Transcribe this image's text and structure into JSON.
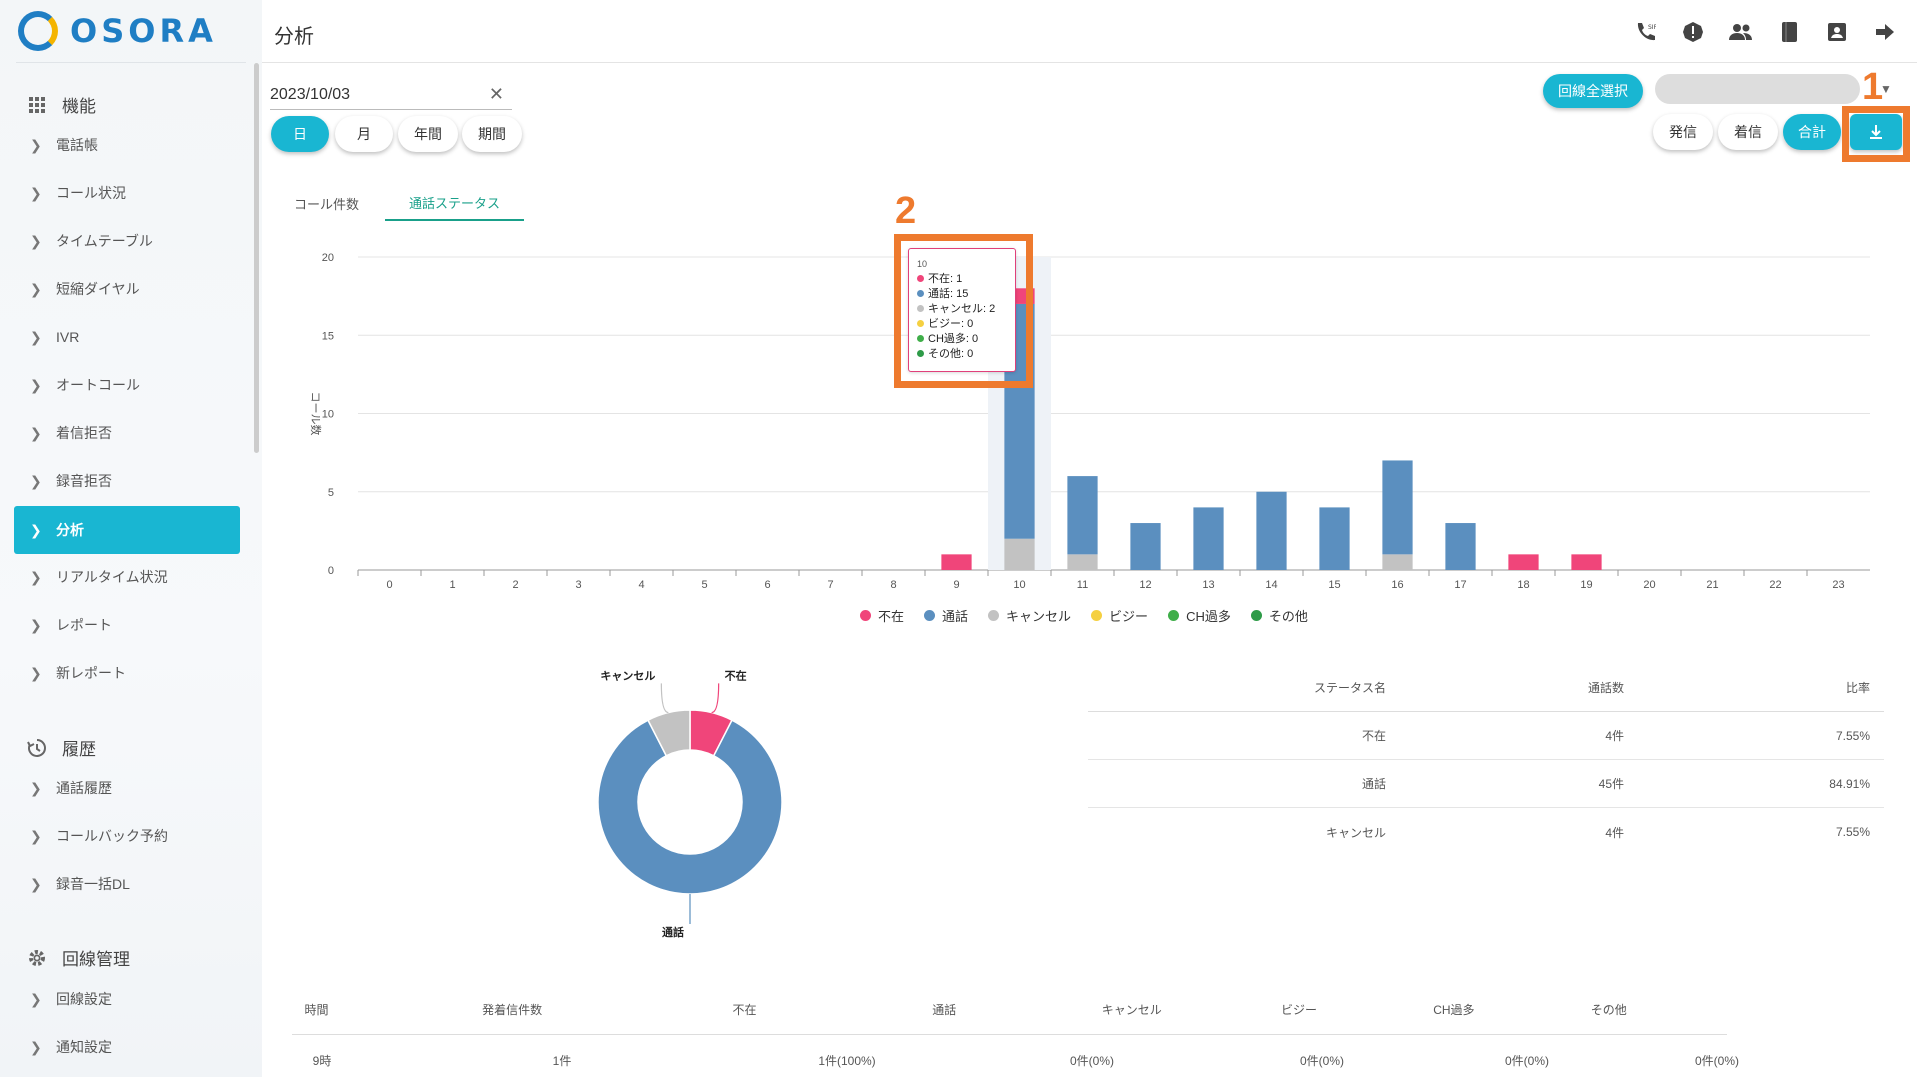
{
  "app": {
    "name": "OSORA",
    "page_title": "分析"
  },
  "sidebar": {
    "sections": [
      {
        "label": "機能",
        "icon": "grid-icon"
      },
      {
        "label": "履歴",
        "icon": "history-icon"
      },
      {
        "label": "回線管理",
        "icon": "gear-icon"
      }
    ],
    "items": [
      {
        "label": "電話帳"
      },
      {
        "label": "コール状況"
      },
      {
        "label": "タイムテーブル"
      },
      {
        "label": "短縮ダイヤル"
      },
      {
        "label": "IVR"
      },
      {
        "label": "オートコール"
      },
      {
        "label": "着信拒否"
      },
      {
        "label": "録音拒否"
      },
      {
        "label": "分析",
        "active": true
      },
      {
        "label": "リアルタイム状況"
      },
      {
        "label": "レポート"
      },
      {
        "label": "新レポート"
      },
      {
        "label": "通話履歴"
      },
      {
        "label": "コールバック予約"
      },
      {
        "label": "録音一括DL"
      },
      {
        "label": "回線設定"
      },
      {
        "label": "通知設定"
      }
    ]
  },
  "header": {
    "icons": [
      "sip-phone-icon",
      "alert-icon",
      "people-icon",
      "book-icon",
      "contact-icon",
      "logout-icon"
    ]
  },
  "filters": {
    "date_value": "2023/10/03",
    "period_buttons": [
      {
        "label": "日",
        "active": true
      },
      {
        "label": "月"
      },
      {
        "label": "年間"
      },
      {
        "label": "期間"
      }
    ],
    "select_all_label": "回線全選択",
    "direction_buttons": [
      {
        "label": "発信"
      },
      {
        "label": "着信"
      },
      {
        "label": "合計",
        "active": true
      }
    ]
  },
  "annotations": {
    "one": "1",
    "two": "2"
  },
  "tabs": [
    {
      "label": "コール件数"
    },
    {
      "label": "通話ステータス",
      "active": true
    }
  ],
  "colors": {
    "absent": "#f0457a",
    "talk": "#5b8fbf",
    "cancel": "#c2c2c2",
    "busy": "#f5d041",
    "ch_over": "#3fae49",
    "other": "#2e9b48",
    "accent": "#19b6d2",
    "highlight": "#ee7a2e"
  },
  "tooltip": {
    "hour": "10",
    "rows": [
      {
        "text": "不在: 1",
        "color": "#f0457a"
      },
      {
        "text": "通話: 15",
        "color": "#5b8fbf"
      },
      {
        "text": "キャンセル: 2",
        "color": "#c2c2c2"
      },
      {
        "text": "ビジー: 0",
        "color": "#f5d041"
      },
      {
        "text": "CH過多: 0",
        "color": "#3fae49"
      },
      {
        "text": "その他: 0",
        "color": "#2e9b48"
      }
    ]
  },
  "chart_data": [
    {
      "type": "bar",
      "stacked": true,
      "ylabel": "コール数",
      "ylim": [
        0,
        20
      ],
      "yticks": [
        0,
        5,
        10,
        15,
        20
      ],
      "categories": [
        "0",
        "1",
        "2",
        "3",
        "4",
        "5",
        "6",
        "7",
        "8",
        "9",
        "10",
        "11",
        "12",
        "13",
        "14",
        "15",
        "16",
        "17",
        "18",
        "19",
        "20",
        "21",
        "22",
        "23"
      ],
      "series": [
        {
          "name": "不在",
          "color": "#f0457a",
          "values": [
            0,
            0,
            0,
            0,
            0,
            0,
            0,
            0,
            0,
            1,
            1,
            0,
            0,
            0,
            0,
            0,
            0,
            0,
            1,
            1,
            0,
            0,
            0,
            0
          ]
        },
        {
          "name": "通話",
          "color": "#5b8fbf",
          "values": [
            0,
            0,
            0,
            0,
            0,
            0,
            0,
            0,
            0,
            0,
            15,
            5,
            3,
            4,
            5,
            4,
            6,
            3,
            0,
            0,
            0,
            0,
            0,
            0
          ]
        },
        {
          "name": "キャンセル",
          "color": "#c2c2c2",
          "values": [
            0,
            0,
            0,
            0,
            0,
            0,
            0,
            0,
            0,
            0,
            2,
            1,
            0,
            0,
            0,
            0,
            1,
            0,
            0,
            0,
            0,
            0,
            0,
            0
          ]
        },
        {
          "name": "ビジー",
          "color": "#f5d041",
          "values": [
            0,
            0,
            0,
            0,
            0,
            0,
            0,
            0,
            0,
            0,
            0,
            0,
            0,
            0,
            0,
            0,
            0,
            0,
            0,
            0,
            0,
            0,
            0,
            0
          ]
        },
        {
          "name": "CH過多",
          "color": "#3fae49",
          "values": [
            0,
            0,
            0,
            0,
            0,
            0,
            0,
            0,
            0,
            0,
            0,
            0,
            0,
            0,
            0,
            0,
            0,
            0,
            0,
            0,
            0,
            0,
            0,
            0
          ]
        },
        {
          "name": "その他",
          "color": "#2e9b48",
          "values": [
            0,
            0,
            0,
            0,
            0,
            0,
            0,
            0,
            0,
            0,
            0,
            0,
            0,
            0,
            0,
            0,
            0,
            0,
            0,
            0,
            0,
            0,
            0,
            0
          ]
        }
      ],
      "legend": "bottom"
    },
    {
      "type": "pie",
      "donut": true,
      "slices": [
        {
          "label": "不在",
          "value": 4,
          "color": "#f0457a"
        },
        {
          "label": "通話",
          "value": 45,
          "color": "#5b8fbf"
        },
        {
          "label": "キャンセル",
          "value": 4,
          "color": "#c2c2c2"
        }
      ]
    }
  ],
  "status_table": {
    "headers": [
      "ステータス名",
      "通話数",
      "比率"
    ],
    "rows": [
      [
        "不在",
        "4件",
        "7.55%"
      ],
      [
        "通話",
        "45件",
        "84.91%"
      ],
      [
        "キャンセル",
        "4件",
        "7.55%"
      ]
    ]
  },
  "hourly_table": {
    "headers": [
      "時間",
      "発着信件数",
      "不在",
      "通話",
      "キャンセル",
      "ビジー",
      "CH過多",
      "その他"
    ],
    "rows": [
      [
        "9時",
        "1件",
        "1件(100%)",
        "0件(0%)",
        "0件(0%)",
        "0件(0%)",
        "0件(0%)",
        ""
      ]
    ]
  }
}
